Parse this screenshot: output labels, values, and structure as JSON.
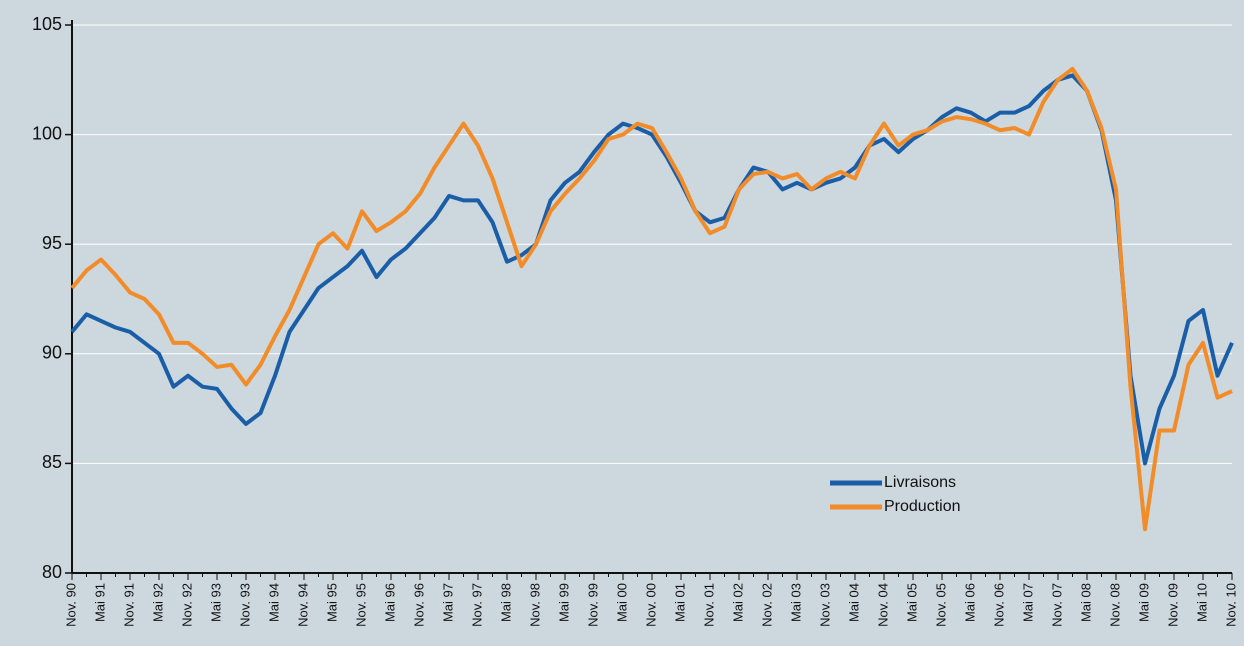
{
  "chart_data": {
    "type": "line",
    "categories": [
      "Nov. 90",
      null,
      "Mai 91",
      null,
      "Nov. 91",
      null,
      "Mai 92",
      null,
      "Nov. 92",
      null,
      "Mai 93",
      null,
      "Nov. 93",
      null,
      "Mai 94",
      null,
      "Nov. 94",
      null,
      "Mai 95",
      null,
      "Nov. 95",
      null,
      "Mai 96",
      null,
      "Nov. 96",
      null,
      "Mai 97",
      null,
      "Nov. 97",
      null,
      "Mai 98",
      null,
      "Nov. 98",
      null,
      "Mai 99",
      null,
      "Nov. 99",
      null,
      "Mai 00",
      null,
      "Nov. 00",
      null,
      "Mai 01",
      null,
      "Nov. 01",
      null,
      "Mai 02",
      null,
      "Nov. 02",
      null,
      "Mai 03",
      null,
      "Nov. 03",
      null,
      "Mai 04",
      null,
      "Nov. 04",
      null,
      "Mai 05",
      null,
      "Nov. 05",
      null,
      "Mai 06",
      null,
      "Nov. 06",
      null,
      "Mai 07",
      null,
      "Nov. 07",
      null,
      "Mai 08",
      null,
      "Nov. 08",
      null,
      "Mai 09",
      null,
      "Nov. 09",
      null,
      "Mai 10",
      null,
      "Nov. 10"
    ],
    "series": [
      {
        "name": "Livraisons",
        "color": "#1a5ea8",
        "values": [
          91,
          91.8,
          91.5,
          91.2,
          91,
          90.5,
          90,
          88.5,
          89,
          88.5,
          88.4,
          87.5,
          86.8,
          87.3,
          89,
          91,
          92,
          93,
          93.5,
          94,
          94.7,
          93.5,
          94.3,
          94.8,
          95.5,
          96.2,
          97.2,
          97,
          97,
          96,
          94.2,
          94.5,
          95,
          97,
          97.8,
          98.3,
          99.2,
          100,
          100.5,
          100.3,
          100,
          99,
          97.8,
          96.5,
          96,
          96.2,
          97.5,
          98.5,
          98.3,
          97.5,
          97.8,
          97.5,
          97.8,
          98,
          98.5,
          99.5,
          99.8,
          99.2,
          99.8,
          100.2,
          100.8,
          101.2,
          101,
          100.6,
          101,
          101,
          101.3,
          102,
          102.5,
          102.7,
          102,
          100.2,
          97,
          89,
          85,
          87.5,
          89,
          91.5,
          92,
          89,
          90.5
        ]
      },
      {
        "name": "Production",
        "color": "#f28c28",
        "values": [
          93,
          93.8,
          94.3,
          93.6,
          92.8,
          92.5,
          91.8,
          90.5,
          90.5,
          90,
          89.4,
          89.5,
          88.6,
          89.5,
          90.8,
          92,
          93.5,
          95,
          95.5,
          94.8,
          96.5,
          95.6,
          96,
          96.5,
          97.3,
          98.5,
          99.5,
          100.5,
          99.5,
          98,
          96,
          94,
          95,
          96.5,
          97.3,
          98,
          98.8,
          99.8,
          100,
          100.5,
          100.3,
          99.2,
          98,
          96.5,
          95.5,
          95.8,
          97.5,
          98.2,
          98.3,
          98,
          98.2,
          97.5,
          98,
          98.3,
          98,
          99.5,
          100.5,
          99.5,
          100,
          100.2,
          100.6,
          100.8,
          100.7,
          100.5,
          100.2,
          100.3,
          100,
          101.5,
          102.5,
          103,
          102,
          100.3,
          97.5,
          88.5,
          82,
          86.5,
          86.5,
          89.5,
          90.5,
          88,
          88.3
        ]
      }
    ],
    "ylim": [
      80,
      105
    ],
    "yticks": [
      80,
      85,
      90,
      95,
      100,
      105
    ],
    "grid": true,
    "legend": "lower right"
  }
}
